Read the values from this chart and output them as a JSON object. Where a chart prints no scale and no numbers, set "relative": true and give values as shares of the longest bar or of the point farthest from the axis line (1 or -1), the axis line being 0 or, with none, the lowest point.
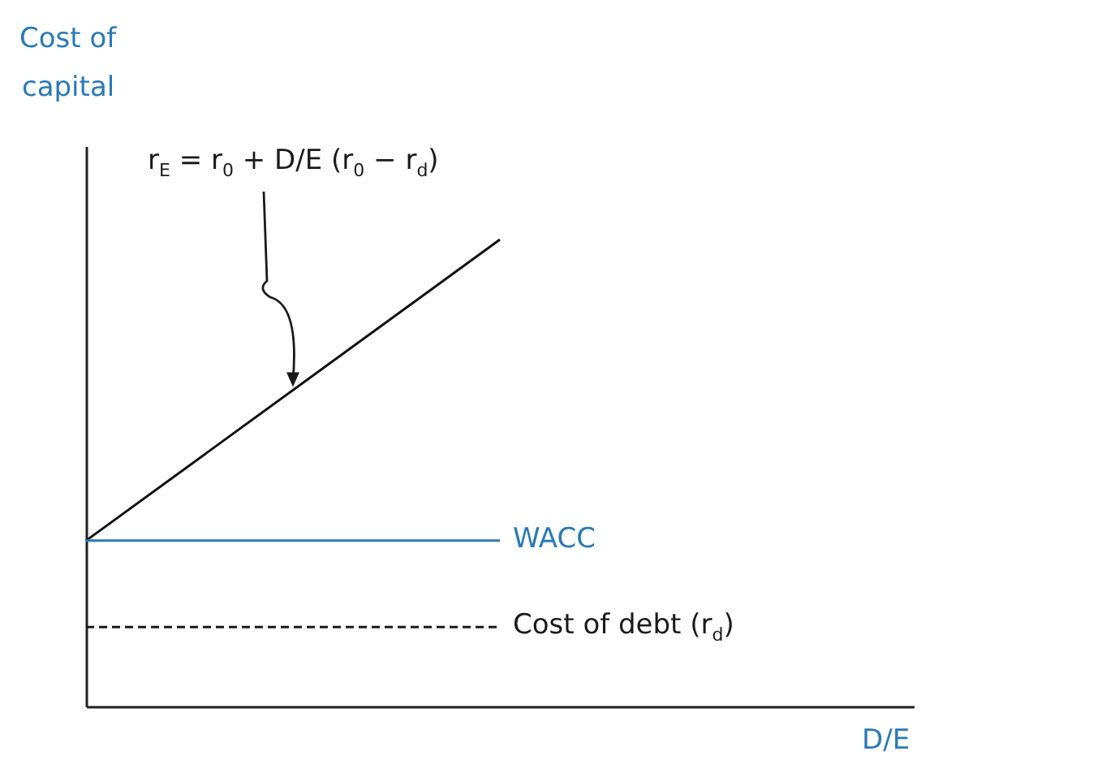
{
  "chart_data": {
    "type": "line",
    "relative": true,
    "xlabel": "D/E",
    "ylabel": "Cost of capital",
    "categories": [
      null,
      null
    ],
    "grid": false,
    "marker": "none",
    "annotations": [
      "r$_{E}$ = r$_{0}$ + D/E (r$_{0}$ − r$_{d}$)"
    ],
    "series": [
      {
        "color": "#111111",
        "values": [
          0.355,
          1
        ],
        "line_style": "solid"
      },
      {
        "name": "WACC",
        "color": "#2a7ab8",
        "values": [
          0.355,
          0.355
        ],
        "line_style": "solid"
      },
      {
        "name": "Cost of debt (r$_{d}$)",
        "color": "#1a1a1a",
        "values": [
          0.17,
          0.17
        ],
        "line_style": "dashed"
      }
    ]
  }
}
